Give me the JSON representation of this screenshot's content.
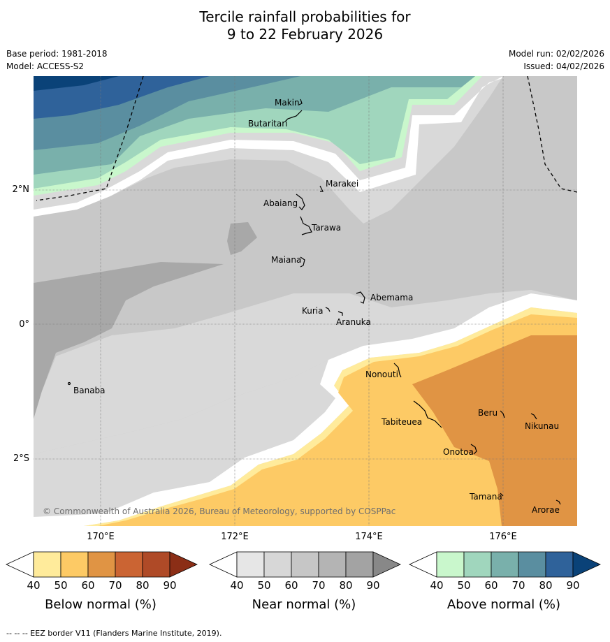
{
  "title": {
    "line1": "Tercile rainfall probabilities for",
    "line2": "9 to 22 February 2026"
  },
  "meta": {
    "base_period": "Base period: 1981-2018",
    "model": "Model: ACCESS-S2",
    "model_run": "Model run: 02/02/2026",
    "issued": "Issued: 04/02/2026"
  },
  "map": {
    "copyright": "© Commonwealth of Australia 2026, Bureau of Meteorology, supported by COSPPac",
    "lon_labels": [
      "170°E",
      "172°E",
      "174°E",
      "176°E"
    ],
    "lat_labels": [
      "2°N",
      "0°",
      "2°S"
    ],
    "places": [
      "Makin",
      "Butaritari",
      "Marakei",
      "Abaiang",
      "Tarawa",
      "Maiana",
      "Abemama",
      "Kuria",
      "Aranuka",
      "Banaba",
      "Nonouti",
      "Tabiteuea",
      "Beru",
      "Nikunau",
      "Onotoa",
      "Tamana",
      "Arorae"
    ]
  },
  "colorbars": [
    {
      "label": "Below normal (%)",
      "ticks": [
        "40",
        "50",
        "60",
        "70",
        "80",
        "90"
      ],
      "colors": [
        "#ffffff",
        "#ffeb9b",
        "#fdca65",
        "#e09444",
        "#cb6433",
        "#af4a27",
        "#8b2e16"
      ]
    },
    {
      "label": "Near normal (%)",
      "ticks": [
        "40",
        "50",
        "60",
        "70",
        "80",
        "90"
      ],
      "colors": [
        "#ffffff",
        "#e6e6e6",
        "#d7d7d7",
        "#c6c6c6",
        "#b4b4b4",
        "#a3a3a3",
        "#888888"
      ]
    },
    {
      "label": "Above normal (%)",
      "ticks": [
        "40",
        "50",
        "60",
        "70",
        "80",
        "90"
      ],
      "colors": [
        "#ffffff",
        "#c9f7cc",
        "#a0d6bd",
        "#79b0ab",
        "#5a8ea0",
        "#2f629a",
        "#0a4278"
      ]
    }
  ],
  "footer": "--  --  -- EEZ border V11 (Flanders Marine Institute, 2019)."
}
